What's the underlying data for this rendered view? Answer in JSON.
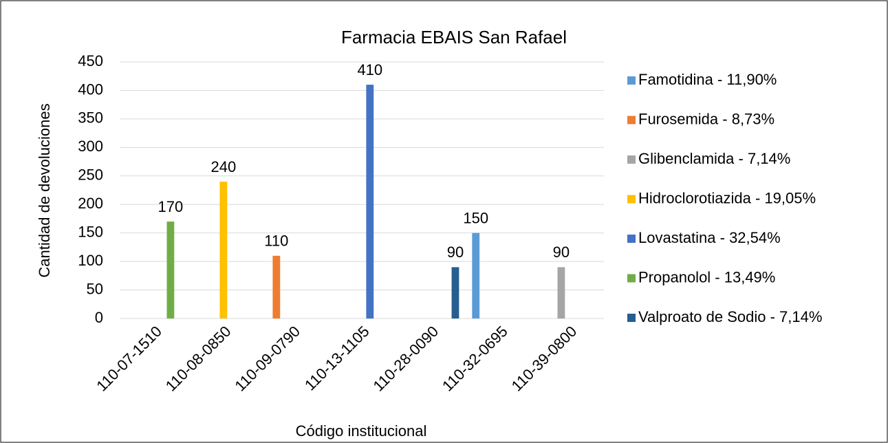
{
  "chart_data": {
    "type": "bar",
    "title": "Farmacia EBAIS San Rafael",
    "x_label": "Código institucional",
    "y_label": "Cantidad de devoluciones",
    "categories": [
      "110-07-1510",
      "110-08-0850",
      "110-09-0790",
      "110-13-1105",
      "110-28-0090",
      "110-32-0695",
      "110-39-0800"
    ],
    "series": [
      {
        "name": "Famotidina - 11,90%",
        "color": "#5b9bd5",
        "values": [
          null,
          null,
          null,
          null,
          null,
          150,
          null
        ]
      },
      {
        "name": "Furosemida - 8,73%",
        "color": "#ed7d31",
        "values": [
          null,
          null,
          110,
          null,
          null,
          null,
          null
        ]
      },
      {
        "name": "Glibenclamida - 7,14%",
        "color": "#a5a5a5",
        "values": [
          null,
          null,
          null,
          null,
          null,
          null,
          90
        ]
      },
      {
        "name": "Hidroclorotiazida - 19,05%",
        "color": "#ffc000",
        "values": [
          null,
          240,
          null,
          null,
          null,
          null,
          null
        ]
      },
      {
        "name": "Lovastatina - 32,54%",
        "color": "#4472c4",
        "values": [
          null,
          null,
          null,
          410,
          null,
          null,
          null
        ]
      },
      {
        "name": "Propanolol - 13,49%",
        "color": "#70ad47",
        "values": [
          170,
          null,
          null,
          null,
          null,
          null,
          null
        ]
      },
      {
        "name": "Valproato de Sodio - 7,14%",
        "color": "#255e91",
        "values": [
          null,
          null,
          null,
          null,
          90,
          null,
          null
        ]
      }
    ],
    "ylim": [
      0,
      450
    ],
    "yticks": [
      0,
      50,
      100,
      150,
      200,
      250,
      300,
      350,
      400,
      450
    ],
    "grid": true,
    "legend": "right"
  }
}
